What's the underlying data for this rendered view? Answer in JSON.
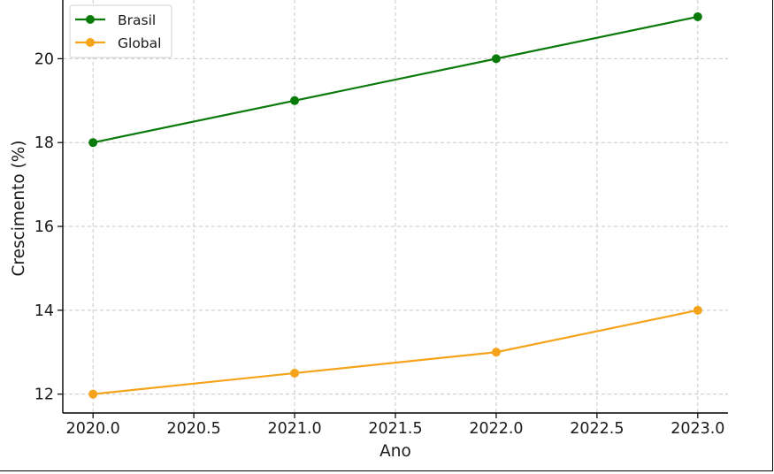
{
  "chart_data": {
    "type": "line",
    "title": "",
    "xlabel": "Ano",
    "ylabel": "Crescimento (%)",
    "xlim": [
      2019.85,
      2023.15
    ],
    "ylim": [
      11.55,
      21.4
    ],
    "x_ticks": [
      "2020.0",
      "2020.5",
      "2021.0",
      "2021.5",
      "2022.0",
      "2022.5",
      "2023.0"
    ],
    "y_ticks": [
      "12",
      "14",
      "16",
      "18",
      "20"
    ],
    "grid": true,
    "legend_position": "top-left",
    "x": [
      2020,
      2021,
      2022,
      2023
    ],
    "series": [
      {
        "name": "Brasil",
        "color": "#0a7a0a",
        "values": [
          18,
          19,
          20,
          21
        ]
      },
      {
        "name": "Global",
        "color": "#f5a31a",
        "values": [
          12,
          12.5,
          13,
          14
        ]
      }
    ]
  }
}
